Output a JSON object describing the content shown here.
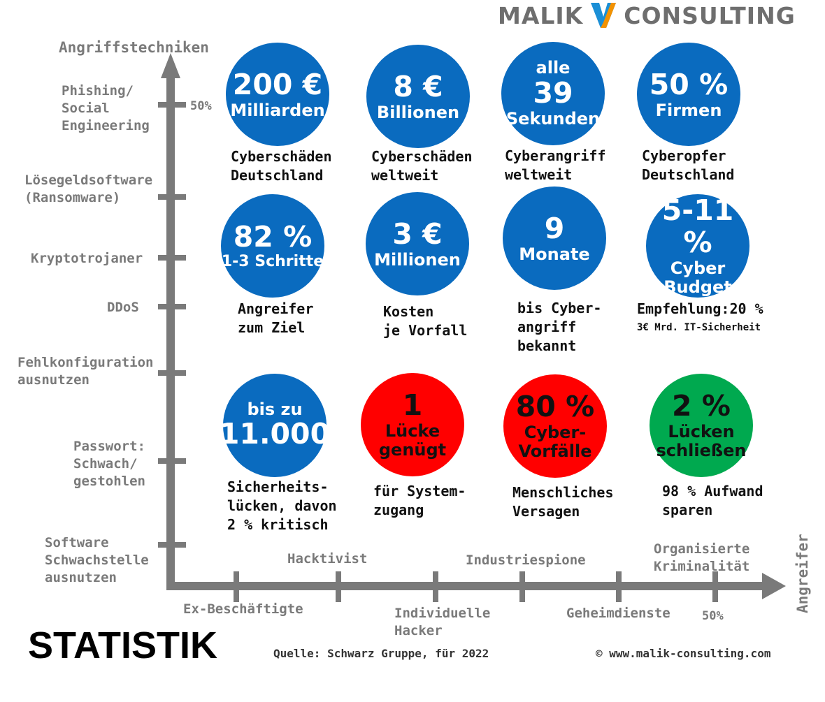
{
  "logo": {
    "left": "MALIK",
    "right": "CONSULTING",
    "colors": {
      "blue": "#1B8FD6",
      "orange": "#F39200"
    }
  },
  "y_axis": {
    "title": "Angriffstechniken",
    "marker": "50%",
    "labels": [
      "Phishing/\nSocial\nEngineering",
      "Lösegeldsoftware\n(Ransomware)",
      "Kryptotrojaner",
      "DDoS",
      "Fehlkonfiguration\nausnutzen",
      "Passwort:\nSchwach/\ngestohlen",
      "Software\nSchwachstelle\nausnutzen"
    ]
  },
  "x_axis": {
    "title": "Angreifer",
    "marker": "50%",
    "labels_top": [
      "Hacktivist",
      "Industriespione",
      "Organisierte\nKriminalität"
    ],
    "labels_bottom": [
      "Ex-Beschäftigte",
      "Individuelle\nHacker",
      "Geheimdienste"
    ]
  },
  "colors": {
    "axis": "#7a7a7a",
    "blue": "#0A6BBF",
    "red": "#FF0000",
    "green": "#00A94F"
  },
  "stats": [
    {
      "lines": [
        "200 €",
        "Milliarden"
      ],
      "color": "blue",
      "desc": "Cyberschäden\nDeutschland"
    },
    {
      "lines": [
        "8 €",
        "Billionen"
      ],
      "color": "blue",
      "desc": "Cyberschäden\nweltweit"
    },
    {
      "lines": [
        "alle",
        "39",
        "Sekunden"
      ],
      "color": "blue",
      "desc": "Cyberangriff\nweltweit"
    },
    {
      "lines": [
        "50 %",
        "Firmen"
      ],
      "color": "blue",
      "desc": "Cyberopfer\nDeutschland"
    },
    {
      "lines": [
        "82 %",
        "1-3 Schritte"
      ],
      "color": "blue",
      "desc": "Angreifer\nzum Ziel"
    },
    {
      "lines": [
        "3 €",
        "Millionen"
      ],
      "color": "blue",
      "desc": "Kosten\n je Vorfall"
    },
    {
      "lines": [
        "9",
        "Monate"
      ],
      "color": "blue",
      "desc": "bis Cyber-\nangriff\nbekannt"
    },
    {
      "lines": [
        "5-11 %",
        "Cyber",
        "Budget"
      ],
      "color": "blue",
      "desc": "Empfehlung:20 %",
      "desc2": "3€ Mrd. IT-Sicherheit"
    },
    {
      "lines": [
        "bis zu",
        "11.000"
      ],
      "color": "blue",
      "desc": "Sicherheits-\nlücken, davon\n2 % kritisch"
    },
    {
      "lines": [
        "1",
        "Lücke",
        "genügt"
      ],
      "color": "red",
      "desc": "für System-\nzugang"
    },
    {
      "lines": [
        "80 %",
        "Cyber-",
        "Vorfälle"
      ],
      "color": "red",
      "desc": "Menschliches\nVersagen"
    },
    {
      "lines": [
        "2 %",
        "Lücken",
        "schließen"
      ],
      "color": "green",
      "desc": "98 % Aufwand\nsparen"
    }
  ],
  "title": "STATISTIK",
  "source": "Quelle: Schwarz Gruppe, für 2022",
  "website": "© www.malik-consulting.com"
}
